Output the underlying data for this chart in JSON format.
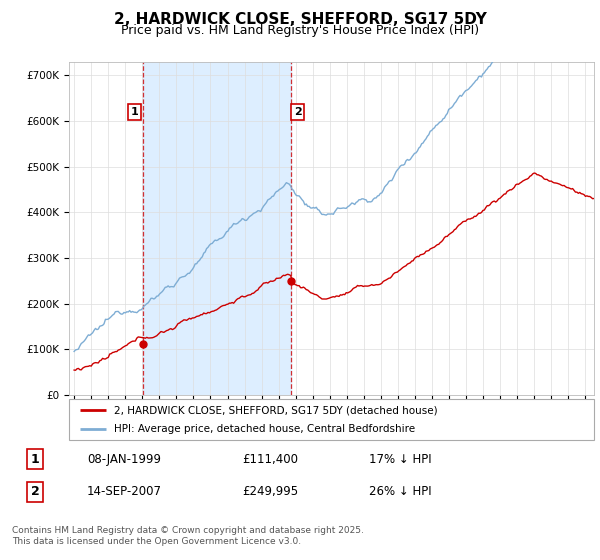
{
  "title": "2, HARDWICK CLOSE, SHEFFORD, SG17 5DY",
  "subtitle": "Price paid vs. HM Land Registry's House Price Index (HPI)",
  "ylabel_ticks": [
    "£0",
    "£100K",
    "£200K",
    "£300K",
    "£400K",
    "£500K",
    "£600K",
    "£700K"
  ],
  "ytick_vals": [
    0,
    100000,
    200000,
    300000,
    400000,
    500000,
    600000,
    700000
  ],
  "ylim": [
    0,
    730000
  ],
  "xlim_start": 1994.7,
  "xlim_end": 2025.5,
  "red_line_color": "#cc0000",
  "blue_line_color": "#7eadd4",
  "blue_fill_color": "#ddeeff",
  "transaction1_x": 1999.03,
  "transaction1_y": 111400,
  "transaction2_x": 2007.71,
  "transaction2_y": 249995,
  "vline1_x": 1999.03,
  "vline2_x": 2007.71,
  "legend_red": "2, HARDWICK CLOSE, SHEFFORD, SG17 5DY (detached house)",
  "legend_blue": "HPI: Average price, detached house, Central Bedfordshire",
  "table_row1": [
    "1",
    "08-JAN-1999",
    "£111,400",
    "17% ↓ HPI"
  ],
  "table_row2": [
    "2",
    "14-SEP-2007",
    "£249,995",
    "26% ↓ HPI"
  ],
  "footer": "Contains HM Land Registry data © Crown copyright and database right 2025.\nThis data is licensed under the Open Government Licence v3.0.",
  "background_color": "#ffffff",
  "grid_color": "#dddddd",
  "title_fontsize": 11,
  "subtitle_fontsize": 9,
  "tick_fontsize": 7.5
}
